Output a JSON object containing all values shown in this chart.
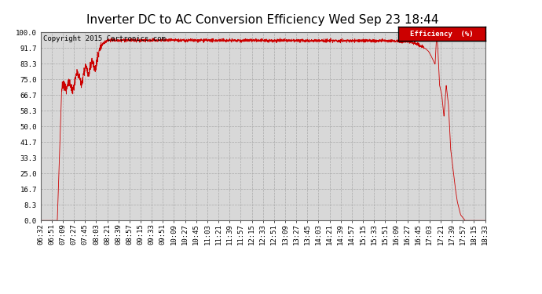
{
  "title": "Inverter DC to AC Conversion Efficiency Wed Sep 23 18:44",
  "copyright": "Copyright 2015 Cartronics.com",
  "legend_label": "Efficiency  (%)",
  "legend_bg": "#cc0000",
  "legend_fg": "#ffffff",
  "line_color": "#cc0000",
  "bg_color": "#ffffff",
  "grid_color": "#aaaaaa",
  "plot_bg": "#d8d8d8",
  "ylim": [
    0.0,
    100.0
  ],
  "yticks": [
    0.0,
    8.3,
    16.7,
    25.0,
    33.3,
    41.7,
    50.0,
    58.3,
    66.7,
    75.0,
    83.3,
    91.7,
    100.0
  ],
  "xtick_labels": [
    "06:32",
    "06:51",
    "07:09",
    "07:27",
    "07:45",
    "08:03",
    "08:21",
    "08:39",
    "08:57",
    "09:15",
    "09:33",
    "09:51",
    "10:09",
    "10:27",
    "10:45",
    "11:03",
    "11:21",
    "11:39",
    "11:57",
    "12:15",
    "12:33",
    "12:51",
    "13:09",
    "13:27",
    "13:45",
    "14:03",
    "14:21",
    "14:39",
    "14:57",
    "15:15",
    "15:33",
    "15:51",
    "16:09",
    "16:27",
    "16:45",
    "17:03",
    "17:21",
    "17:39",
    "17:57",
    "18:15",
    "18:33"
  ],
  "title_fontsize": 11,
  "axis_fontsize": 6.5,
  "copyright_fontsize": 6.5,
  "keypoints": [
    [
      0.0,
      0.0
    ],
    [
      1.0,
      0.0
    ],
    [
      1.5,
      0.0
    ],
    [
      1.9,
      71.0
    ],
    [
      2.1,
      73.0
    ],
    [
      2.3,
      70.0
    ],
    [
      2.5,
      74.0
    ],
    [
      2.7,
      72.0
    ],
    [
      2.9,
      68.0
    ],
    [
      3.1,
      75.0
    ],
    [
      3.3,
      79.0
    ],
    [
      3.5,
      76.0
    ],
    [
      3.7,
      72.0
    ],
    [
      3.9,
      80.0
    ],
    [
      4.1,
      83.0
    ],
    [
      4.3,
      77.0
    ],
    [
      4.6,
      85.0
    ],
    [
      4.9,
      80.0
    ],
    [
      5.3,
      91.0
    ],
    [
      5.7,
      94.5
    ],
    [
      6.0,
      95.8
    ],
    [
      32.0,
      95.5
    ],
    [
      32.5,
      94.8
    ],
    [
      33.0,
      95.2
    ],
    [
      33.5,
      94.5
    ],
    [
      34.0,
      93.5
    ],
    [
      34.3,
      92.5
    ],
    [
      34.6,
      91.5
    ],
    [
      34.9,
      90.0
    ],
    [
      35.1,
      88.0
    ],
    [
      35.3,
      85.5
    ],
    [
      35.5,
      83.0
    ],
    [
      35.65,
      100.0
    ],
    [
      35.75,
      91.0
    ],
    [
      35.9,
      72.0
    ],
    [
      36.1,
      67.0
    ],
    [
      36.3,
      55.0
    ],
    [
      36.5,
      72.0
    ],
    [
      36.7,
      62.0
    ],
    [
      36.9,
      38.0
    ],
    [
      37.1,
      28.0
    ],
    [
      37.3,
      18.0
    ],
    [
      37.5,
      10.0
    ],
    [
      37.8,
      3.0
    ],
    [
      38.2,
      0.0
    ],
    [
      40.0,
      0.0
    ]
  ]
}
